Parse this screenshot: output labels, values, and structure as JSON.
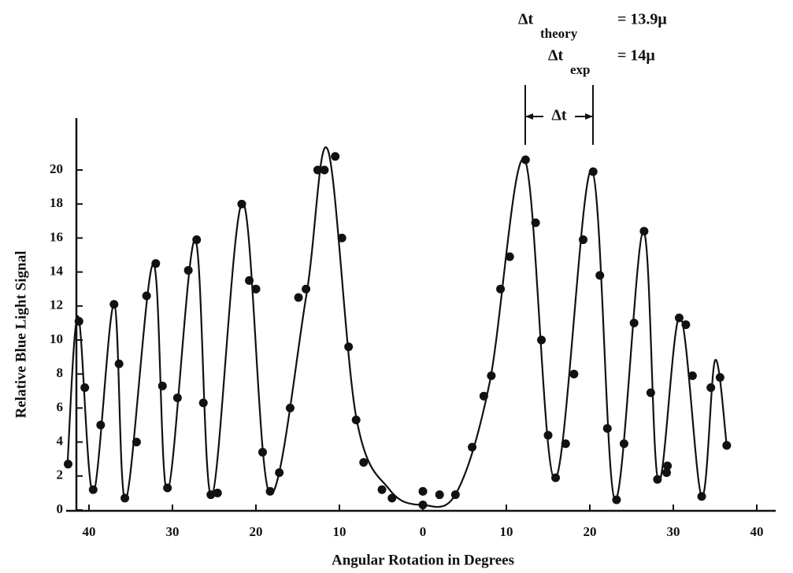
{
  "chart_data": {
    "type": "scatter",
    "x_label": "Angular Rotation in Degrees",
    "y_label": "Relative Blue Light Signal",
    "xlim": [
      -43,
      43
    ],
    "ylim": [
      0,
      23
    ],
    "xticks": [
      {
        "value": -40,
        "label": "40"
      },
      {
        "value": -30,
        "label": "30"
      },
      {
        "value": -20,
        "label": "20"
      },
      {
        "value": -10,
        "label": "10"
      },
      0,
      10,
      20,
      30,
      40
    ],
    "yticks": [
      0,
      2,
      4,
      6,
      8,
      10,
      12,
      14,
      16,
      18,
      20
    ],
    "annotations": [
      {
        "text": "Δt",
        "subscript": "theory",
        "value": "= 13.9μ"
      },
      {
        "text": "Δt",
        "subscript": "exp",
        "value": "= 14μ"
      }
    ],
    "bracket_label": "Δt",
    "series": [
      {
        "type": "scatter",
        "color": "#111111",
        "x": [
          -42.5,
          -41.2,
          -40.5,
          -39.5,
          -38.6,
          -37.0,
          -36.4,
          -35.7,
          -34.3,
          -33.1,
          -32.0,
          -31.2,
          -30.6,
          -29.4,
          -28.1,
          -27.1,
          -26.3,
          -25.4,
          -24.6,
          -21.7,
          -20.8,
          -20.0,
          -19.2,
          -18.3,
          -17.2,
          -15.9,
          -14.9,
          -14.0,
          -12.6,
          -11.8,
          -10.5,
          -9.7,
          -8.9,
          -8.0,
          -7.1,
          -4.9,
          -3.7,
          0,
          0,
          2.0,
          3.9,
          5.9,
          7.3,
          8.2,
          9.3,
          10.4,
          12.3,
          13.5,
          14.2,
          15.0,
          15.9,
          17.1,
          18.1,
          19.2,
          20.4,
          21.2,
          22.1,
          23.2,
          24.1,
          25.3,
          26.5,
          27.3,
          28.1,
          29.2,
          29.3,
          30.7,
          31.5,
          32.3,
          33.4,
          34.5,
          35.6,
          36.4
        ],
        "values": [
          2.7,
          11.1,
          7.2,
          1.2,
          5.0,
          12.1,
          8.6,
          0.7,
          4.0,
          12.6,
          14.5,
          7.3,
          1.3,
          6.6,
          14.1,
          15.9,
          6.3,
          0.9,
          1.0,
          18.0,
          13.5,
          13.0,
          3.4,
          1.1,
          2.2,
          6.0,
          12.5,
          13.0,
          20.0,
          20.0,
          20.8,
          16.0,
          9.6,
          5.3,
          2.8,
          1.2,
          0.7,
          1.1,
          0.3,
          0.9,
          0.9,
          3.7,
          6.7,
          7.9,
          13.0,
          14.9,
          20.6,
          16.9,
          10.0,
          4.4,
          1.9,
          3.9,
          8.0,
          15.9,
          19.9,
          13.8,
          4.8,
          0.6,
          3.9,
          11.0,
          16.4,
          6.9,
          1.8,
          2.2,
          2.6,
          11.3,
          10.9,
          7.9,
          0.8,
          7.2,
          7.8,
          3.8
        ]
      },
      {
        "type": "line",
        "color": "#111111",
        "x": [
          -42.6,
          -41.3,
          -39.5,
          -37.0,
          -35.6,
          -32.3,
          -30.6,
          -27.3,
          -25.3,
          -21.6,
          -18.4,
          -14.0,
          -11.4,
          -8.0,
          -4.0,
          0,
          4.0,
          8.0,
          12.2,
          15.8,
          20.2,
          23.0,
          26.4,
          28.2,
          30.8,
          33.4,
          35.0,
          36.4
        ],
        "values": [
          2.5,
          11.4,
          1.0,
          12.1,
          0.6,
          14.5,
          1.1,
          15.9,
          0.8,
          18.1,
          1.0,
          12.5,
          21.2,
          5.5,
          1.2,
          0.3,
          1.0,
          7.5,
          20.6,
          1.8,
          20.0,
          0.6,
          16.4,
          1.7,
          11.4,
          0.8,
          8.8,
          3.8
        ]
      }
    ]
  }
}
